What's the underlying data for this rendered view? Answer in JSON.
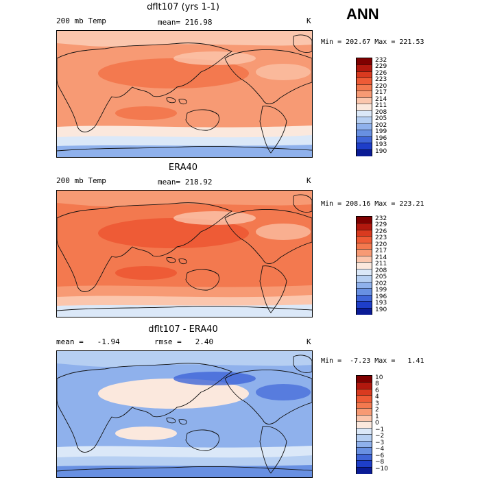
{
  "season": "ANN",
  "panels": [
    {
      "title": "dflt107 (yrs 1-1)",
      "left_label": "200 mb Temp",
      "center_label": "mean= 216.98",
      "right_label": "K",
      "minmax": "Min = 202.67 Max = 221.53",
      "colorbar": {
        "labels": [
          "232",
          "229",
          "226",
          "223",
          "220",
          "217",
          "214",
          "211",
          "208",
          "205",
          "202",
          "199",
          "196",
          "193",
          "190"
        ],
        "colors": [
          "#7f0000",
          "#b2180e",
          "#d93a1f",
          "#ee5b36",
          "#f3794f",
          "#f79a74",
          "#fbc6ad",
          "#fbe8dd",
          "#dbe8f8",
          "#b6cff2",
          "#8fb1ec",
          "#6890e2",
          "#3f65d8",
          "#1e3ec9",
          "#0a1b96"
        ]
      }
    },
    {
      "title": "ERA40",
      "left_label": "200 mb Temp",
      "center_label": "mean= 218.92",
      "right_label": "K",
      "minmax": "Min = 208.16 Max = 223.21",
      "colorbar": {
        "labels": [
          "232",
          "229",
          "226",
          "223",
          "220",
          "217",
          "214",
          "211",
          "208",
          "205",
          "202",
          "199",
          "196",
          "193",
          "190"
        ],
        "colors": [
          "#7f0000",
          "#b2180e",
          "#d93a1f",
          "#ee5b36",
          "#f3794f",
          "#f79a74",
          "#fbc6ad",
          "#fbe8dd",
          "#dbe8f8",
          "#b6cff2",
          "#8fb1ec",
          "#6890e2",
          "#3f65d8",
          "#1e3ec9",
          "#0a1b96"
        ]
      }
    },
    {
      "title": "dflt107 - ERA40",
      "left_label": "mean =   -1.94",
      "center_label": "rmse =   2.40",
      "right_label": "K",
      "minmax": "Min =  -7.23 Max =   1.41",
      "colorbar": {
        "labels": [
          "10",
          "8",
          "6",
          "4",
          "3",
          "2",
          "1",
          "0",
          "−1",
          "−2",
          "−3",
          "−4",
          "−6",
          "−8",
          "−10"
        ],
        "colors": [
          "#7f0000",
          "#b2180e",
          "#d93a1f",
          "#ee5b36",
          "#f3794f",
          "#f79a74",
          "#fbc6ad",
          "#fbe8dd",
          "#dbe8f8",
          "#b6cff2",
          "#8fb1ec",
          "#6890e2",
          "#3f65d8",
          "#1e3ec9",
          "#0a1b96"
        ]
      }
    }
  ],
  "map_fills": {
    "p1": {
      "base": "#f79a74",
      "band_n": "#fbc6ad",
      "band_s": "#fbe8dd",
      "band_s2": "#dbe8f8",
      "polar_s": "#8fb1ec",
      "warm": "#f3794f",
      "cool": "#fbc6ad"
    },
    "p2": {
      "base": "#f3794f",
      "band_n": "#f79a74",
      "band_s": "#f79a74",
      "band_s2": "#fbc6ad",
      "polar_s": "#dbe8f8",
      "warm": "#ee5b36",
      "cool": "#fbc6ad"
    },
    "p3": {
      "base": "#8fb1ec",
      "band_n": "#b6cff2",
      "band_s": "#dbe8f8",
      "band_s2": "#b6cff2",
      "polar_s": "#6890e2",
      "warm": "#fbe8dd",
      "cool": "#3f65d8"
    }
  }
}
